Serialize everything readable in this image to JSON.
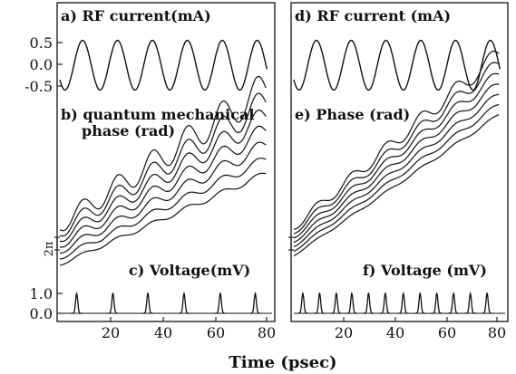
{
  "figure": {
    "xlabel": "Time (psec)",
    "two_pi_label": "2π"
  },
  "chart_data": [
    {
      "id": "a",
      "type": "line",
      "title": "a) RF current(mA)",
      "ylabel": "",
      "xlabel": "",
      "yticks": [
        "0.5",
        "0.0",
        "-0.5"
      ],
      "ylim": [
        -0.7,
        0.7
      ],
      "xlim": [
        0,
        82
      ],
      "series": [
        {
          "kind": "sine",
          "amplitude": 0.6,
          "period": 13.5,
          "phase": 0.35
        }
      ]
    },
    {
      "id": "b",
      "type": "line",
      "title": "b) quantum mechanical",
      "title2": "phase (rad)",
      "note": "2π",
      "xlim": [
        0,
        82
      ],
      "series": [
        {
          "offset": 0.0,
          "slope": 0.06,
          "ripple": 0.08
        },
        {
          "offset": 0.35,
          "slope": 0.065,
          "ripple": 0.12
        },
        {
          "offset": 0.7,
          "slope": 0.07,
          "ripple": 0.18
        },
        {
          "offset": 1.05,
          "slope": 0.075,
          "ripple": 0.24
        },
        {
          "offset": 1.4,
          "slope": 0.08,
          "ripple": 0.3
        },
        {
          "offset": 1.75,
          "slope": 0.085,
          "ripple": 0.38
        },
        {
          "offset": 2.1,
          "slope": 0.09,
          "ripple": 0.46
        }
      ]
    },
    {
      "id": "c",
      "type": "line",
      "title": "c) Voltage(mV)",
      "yticks": [
        "1.0",
        "0.0"
      ],
      "ylim": [
        0,
        1.2
      ],
      "xticks": [
        20,
        40,
        60,
        80
      ],
      "xlim": [
        0,
        82
      ],
      "spikes": [
        6.5,
        20.5,
        34.0,
        48.0,
        62.0,
        75.5
      ],
      "spike_height": 1.0
    },
    {
      "id": "d",
      "type": "line",
      "title": "d) RF current (mA)",
      "ylim": [
        -0.7,
        0.7
      ],
      "xlim": [
        0,
        82
      ],
      "series": [
        {
          "kind": "sine",
          "amplitude": 0.6,
          "period": 13.5,
          "phase": 0.35
        }
      ]
    },
    {
      "id": "e",
      "type": "line",
      "title": "e) Phase (rad)",
      "note": "",
      "xlim": [
        0,
        82
      ],
      "series": [
        {
          "offset": 0.0,
          "slope": 0.13,
          "ripple": 0.06
        },
        {
          "offset": 0.35,
          "slope": 0.135,
          "ripple": 0.09
        },
        {
          "offset": 0.7,
          "slope": 0.14,
          "ripple": 0.12
        },
        {
          "offset": 1.05,
          "slope": 0.145,
          "ripple": 0.16
        },
        {
          "offset": 1.4,
          "slope": 0.15,
          "ripple": 0.2
        },
        {
          "offset": 1.75,
          "slope": 0.155,
          "ripple": 0.26
        },
        {
          "offset": 2.1,
          "slope": 0.16,
          "ripple": 0.32
        }
      ]
    },
    {
      "id": "f",
      "type": "line",
      "title": "f) Voltage (mV)",
      "ylim": [
        0,
        1.2
      ],
      "xticks": [
        20,
        40,
        60,
        80
      ],
      "xlim": [
        0,
        82
      ],
      "spikes": [
        3.5,
        10.0,
        16.5,
        22.5,
        29.0,
        35.5,
        42.5,
        49.0,
        55.5,
        62.0,
        68.5,
        75.0
      ],
      "spike_height": 1.0
    }
  ]
}
